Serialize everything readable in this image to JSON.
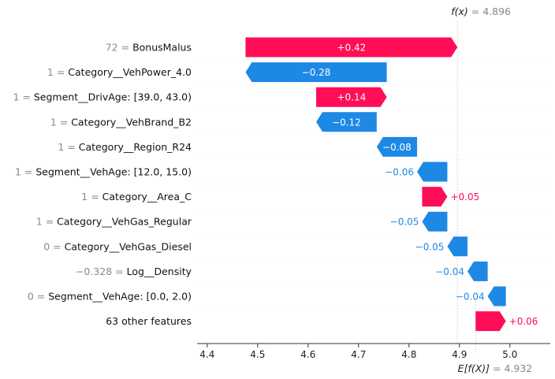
{
  "chart_data": {
    "type": "waterfall",
    "title": "",
    "xlabel": "",
    "ylabel": "",
    "xlim": [
      4.38,
      5.08
    ],
    "xticks": [
      "4.4",
      "4.5",
      "4.6",
      "4.7",
      "4.8",
      "4.9",
      "5.0"
    ],
    "fx": {
      "label": "f(x)",
      "value_text": "= 4.896",
      "value": 4.896
    },
    "efx": {
      "label": "E[f(X)]",
      "value_text": "= 4.932",
      "value": 4.932
    },
    "colors": {
      "positive": "#ff0d57",
      "negative": "#1e88e5",
      "line": "#cccccc"
    },
    "features": [
      {
        "value": "72",
        "name": "BonusMalus",
        "start": 4.476,
        "end": 4.896,
        "contribution": 0.42,
        "label": "+0.42"
      },
      {
        "value": "1",
        "name": "Category__VehPower_4.0",
        "start": 4.756,
        "end": 4.476,
        "contribution": -0.28,
        "label": "−0.28"
      },
      {
        "value": "1",
        "name": "Segment__DrivAge: [39.0, 43.0)",
        "start": 4.616,
        "end": 4.756,
        "contribution": 0.14,
        "label": "+0.14"
      },
      {
        "value": "1",
        "name": "Category__VehBrand_B2",
        "start": 4.736,
        "end": 4.616,
        "contribution": -0.12,
        "label": "−0.12"
      },
      {
        "value": "1",
        "name": "Category__Region_R24",
        "start": 4.816,
        "end": 4.736,
        "contribution": -0.08,
        "label": "−0.08"
      },
      {
        "value": "1",
        "name": "Segment__VehAge: [12.0, 15.0)",
        "start": 4.876,
        "end": 4.816,
        "contribution": -0.06,
        "label": "−0.06"
      },
      {
        "value": "1",
        "name": "Category__Area_C",
        "start": 4.826,
        "end": 4.876,
        "contribution": 0.05,
        "label": "+0.05"
      },
      {
        "value": "1",
        "name": "Category__VehGas_Regular",
        "start": 4.876,
        "end": 4.826,
        "contribution": -0.05,
        "label": "−0.05"
      },
      {
        "value": "0",
        "name": "Category__VehGas_Diesel",
        "start": 4.916,
        "end": 4.876,
        "contribution": -0.05,
        "label": "−0.05"
      },
      {
        "value": "−0.328",
        "name": "Log__Density",
        "start": 4.956,
        "end": 4.916,
        "contribution": -0.04,
        "label": "−0.04"
      },
      {
        "value": "0",
        "name": "Segment__VehAge: [0.0, 2.0)",
        "start": 4.992,
        "end": 4.956,
        "contribution": -0.04,
        "label": "−0.04"
      },
      {
        "value": "",
        "name": "63 other features",
        "start": 4.932,
        "end": 4.992,
        "contribution": 0.06,
        "label": "+0.06"
      }
    ]
  }
}
